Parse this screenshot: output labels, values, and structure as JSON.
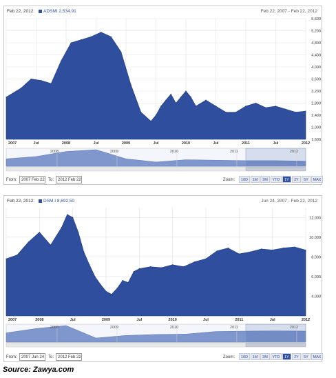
{
  "source": "Source: Zawya.com",
  "chart_data": [
    {
      "type": "area",
      "header_date": "Feb 22, 2012:",
      "series_label": "ADSMI 2,534.91",
      "range_label": "Feb 22, 2007 - Feb 22, 2012",
      "ylim": [
        1600,
        5600
      ],
      "y_ticks": [
        "1,600",
        "2,000",
        "2,400",
        "2,800",
        "3,200",
        "3,600",
        "4,000",
        "4,400",
        "4,800",
        "5,200",
        "5,600"
      ],
      "x_ticks": [
        "2007",
        "Jul",
        "2008",
        "Jul",
        "2009",
        "Jul",
        "2010",
        "Jul",
        "2011",
        "Jul",
        "2012"
      ],
      "nav_ticks": [
        "2008",
        "2009",
        "2010",
        "2011",
        "2012"
      ],
      "x": [
        0,
        3,
        5,
        7,
        9,
        11,
        13,
        15,
        17,
        19,
        21,
        23,
        25,
        27,
        29,
        30,
        31,
        32,
        33,
        34,
        35,
        36,
        37,
        38,
        40,
        42,
        44,
        46,
        48,
        50,
        52,
        54,
        56,
        58,
        60
      ],
      "values": [
        3000,
        3300,
        3600,
        3550,
        3450,
        4200,
        4800,
        4900,
        5000,
        5150,
        5000,
        4500,
        3400,
        2500,
        2200,
        2400,
        2700,
        2900,
        3100,
        2800,
        3000,
        3200,
        3000,
        2700,
        2900,
        2700,
        2500,
        2500,
        2700,
        2800,
        2650,
        2700,
        2600,
        2500,
        2535
      ],
      "nav_values": [
        3000,
        3500,
        4600,
        5000,
        3000,
        2300,
        2800,
        2700,
        2600,
        2600,
        2500
      ],
      "from_label": "From:",
      "from_value": "2007 Feb 22",
      "to_label": "To:",
      "to_value": "2012 Feb 22",
      "zoom_label": "Zoom:",
      "zoom_buttons": [
        "10D",
        "1M",
        "3M",
        "YTD",
        "1Y",
        "2Y",
        "5Y",
        "MAX"
      ],
      "zoom_active": "1Y",
      "color": "#2f4f9e",
      "grid": true
    },
    {
      "type": "area",
      "header_date": "Feb 22, 2012:",
      "series_label": "DSM.I 8,692.50",
      "range_label": "Jun 24, 2007 - Feb 22, 2012",
      "ylim": [
        2000,
        13000
      ],
      "y_ticks": [
        "4,000",
        "6,000",
        "8,000",
        "10,000",
        "12,000"
      ],
      "y_tick_values": [
        4000,
        6000,
        8000,
        10000,
        12000
      ],
      "x_ticks": [
        "2007",
        "2008",
        "Jul",
        "2009",
        "Jul",
        "2010",
        "Jul",
        "2011",
        "Jul",
        "2012"
      ],
      "nav_ticks": [
        "2008",
        "2009",
        "2010",
        "2011",
        "2012"
      ],
      "x": [
        0,
        2,
        4,
        6,
        8,
        10,
        11,
        12,
        13,
        14,
        15,
        16,
        17,
        18,
        19,
        20,
        21,
        22,
        23,
        24,
        26,
        28,
        30,
        32,
        34,
        36,
        38,
        40,
        42,
        44,
        46,
        48,
        50,
        52,
        54
      ],
      "values": [
        7800,
        8200,
        9500,
        10500,
        9200,
        11000,
        12300,
        12000,
        10500,
        8500,
        7200,
        6000,
        5200,
        4500,
        4200,
        4800,
        5600,
        5400,
        6500,
        6800,
        7000,
        6900,
        7200,
        7000,
        7500,
        7800,
        8600,
        8900,
        8300,
        8500,
        8800,
        8700,
        8900,
        9000,
        8690
      ],
      "nav_values": [
        7800,
        10000,
        11500,
        5200,
        6500,
        7000,
        7200,
        8500,
        8700,
        8800,
        8700
      ],
      "from_label": "From:",
      "from_value": "2007 Jun 24",
      "to_label": "To:",
      "to_value": "2012 Feb 22",
      "zoom_label": "Zoom:",
      "zoom_buttons": [
        "10D",
        "1M",
        "3M",
        "YTD",
        "1Y",
        "2Y",
        "5Y",
        "MAX"
      ],
      "zoom_active": "1Y",
      "color": "#2f4f9e",
      "grid": true
    }
  ]
}
